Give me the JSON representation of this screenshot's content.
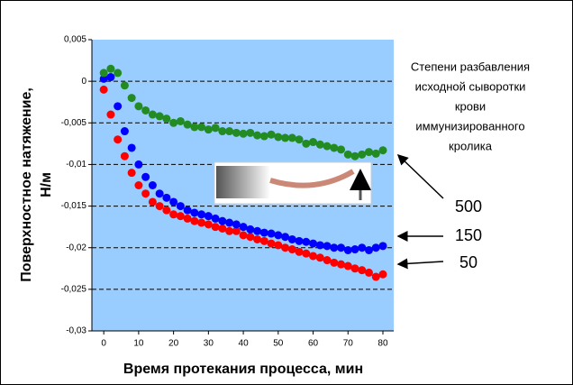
{
  "chart_data": {
    "type": "scatter",
    "y_label": [
      "Поверхностное натяжение,",
      "Н/м"
    ],
    "x_label": "Время протекания процесса, мин",
    "note": [
      "Степени разбавления",
      "исходной сыворотки",
      "крови",
      "иммунизированного",
      "кролика"
    ],
    "xlim": [
      -3.4,
      83.1
    ],
    "xticks": [
      0,
      10,
      20,
      30,
      40,
      50,
      60,
      70,
      80
    ],
    "ylim": [
      -0.03,
      0.005
    ],
    "yticks": [
      {
        "value": -0.03,
        "label": "-0,03"
      },
      {
        "value": -0.025,
        "label": "-0,025"
      },
      {
        "value": -0.02,
        "label": "-0,02"
      },
      {
        "value": -0.015,
        "label": "-0,015"
      },
      {
        "value": -0.01,
        "label": "-0,01"
      },
      {
        "value": -0.005,
        "label": "-0,005"
      },
      0,
      {
        "value": 0.005,
        "label": "0,005"
      }
    ],
    "grid": true,
    "background": "#99ccff",
    "x": [
      0,
      2,
      4,
      6,
      8,
      10,
      12,
      14,
      16,
      18,
      20,
      22,
      24,
      26,
      28,
      30,
      32,
      34,
      36,
      38,
      40,
      42,
      44,
      46,
      48,
      50,
      52,
      54,
      56,
      58,
      60,
      62,
      64,
      66,
      68,
      70,
      72,
      74,
      76,
      78,
      80
    ],
    "series": [
      {
        "name": "50",
        "color": "#ff0000",
        "values": [
          -0.001,
          -0.004,
          -0.007,
          -0.009,
          -0.011,
          -0.0125,
          -0.0135,
          -0.0145,
          -0.015,
          -0.0155,
          -0.016,
          -0.0162,
          -0.0165,
          -0.0168,
          -0.017,
          -0.0172,
          -0.0175,
          -0.0177,
          -0.018,
          -0.018,
          -0.0185,
          -0.0187,
          -0.019,
          -0.0192,
          -0.0195,
          -0.0197,
          -0.02,
          -0.0202,
          -0.0205,
          -0.0207,
          -0.021,
          -0.0212,
          -0.0215,
          -0.0218,
          -0.022,
          -0.0222,
          -0.0225,
          -0.0227,
          -0.023,
          -0.0235,
          -0.0232
        ]
      },
      {
        "name": "150",
        "color": "#0000ff",
        "values": [
          0.0003,
          0.0005,
          -0.003,
          -0.006,
          -0.008,
          -0.01,
          -0.0115,
          -0.0125,
          -0.0135,
          -0.014,
          -0.0145,
          -0.015,
          -0.0155,
          -0.0158,
          -0.016,
          -0.0162,
          -0.0165,
          -0.0168,
          -0.017,
          -0.0172,
          -0.0175,
          -0.0178,
          -0.018,
          -0.0182,
          -0.0183,
          -0.0185,
          -0.0187,
          -0.019,
          -0.0192,
          -0.0193,
          -0.0195,
          -0.0197,
          -0.0198,
          -0.02,
          -0.02,
          -0.0203,
          -0.0202,
          -0.02,
          -0.0203,
          -0.02,
          -0.0198
        ]
      },
      {
        "name": "500",
        "color": "#228b22",
        "values": [
          0.001,
          0.0015,
          0.001,
          -0.0005,
          -0.002,
          -0.003,
          -0.0035,
          -0.004,
          -0.0042,
          -0.0045,
          -0.005,
          -0.0048,
          -0.0052,
          -0.0055,
          -0.0055,
          -0.0058,
          -0.0056,
          -0.006,
          -0.006,
          -0.0062,
          -0.0063,
          -0.0062,
          -0.0065,
          -0.0066,
          -0.0064,
          -0.0067,
          -0.0068,
          -0.0068,
          -0.007,
          -0.0075,
          -0.0073,
          -0.0076,
          -0.0078,
          -0.008,
          -0.0082,
          -0.0088,
          -0.009,
          -0.0088,
          -0.0085,
          -0.0087,
          -0.0083
        ]
      }
    ]
  }
}
